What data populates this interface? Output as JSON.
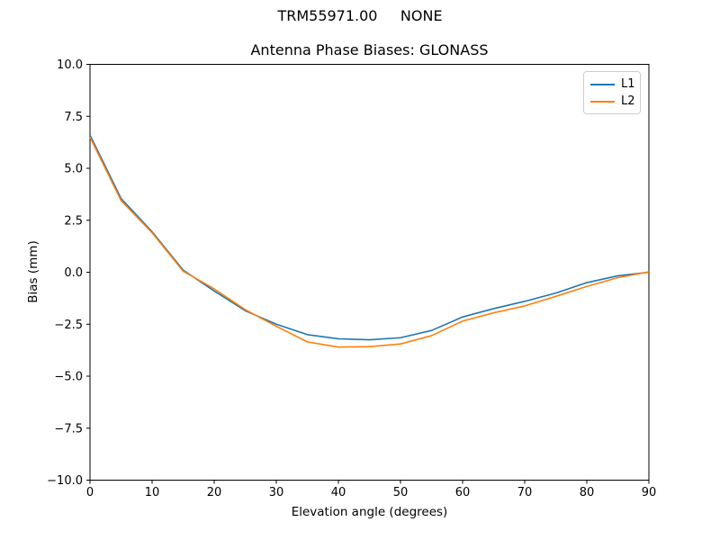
{
  "chart_data": {
    "type": "line",
    "suptitle": "TRM55971.00     NONE",
    "title": "Antenna Phase Biases: GLONASS",
    "xlabel": "Elevation angle (degrees)",
    "ylabel": "Bias (mm)",
    "xlim": [
      0,
      90
    ],
    "ylim": [
      -10,
      10
    ],
    "x_ticks": [
      0,
      10,
      20,
      30,
      40,
      50,
      60,
      70,
      80,
      90
    ],
    "x_tick_labels": [
      "0",
      "10",
      "20",
      "30",
      "40",
      "50",
      "60",
      "70",
      "80",
      "90"
    ],
    "y_ticks": [
      -10,
      -7.5,
      -5,
      -2.5,
      0,
      2.5,
      5,
      7.5,
      10
    ],
    "y_tick_labels": [
      "−10.0",
      "−7.5",
      "−5.0",
      "−2.5",
      "0.0",
      "2.5",
      "5.0",
      "7.5",
      "10.0"
    ],
    "grid": false,
    "legend_position": "upper right",
    "x": [
      0,
      5,
      10,
      15,
      20,
      25,
      30,
      35,
      40,
      45,
      50,
      55,
      60,
      65,
      70,
      75,
      80,
      85,
      90
    ],
    "series": [
      {
        "name": "L1",
        "color": "#1f77b4",
        "values": [
          6.6,
          3.55,
          1.95,
          0.1,
          -0.9,
          -1.85,
          -2.5,
          -3.0,
          -3.2,
          -3.25,
          -3.15,
          -2.8,
          -2.15,
          -1.75,
          -1.4,
          -1.0,
          -0.5,
          -0.17,
          0.0
        ]
      },
      {
        "name": "L2",
        "color": "#ff7f0e",
        "values": [
          6.5,
          3.45,
          1.9,
          0.05,
          -0.8,
          -1.8,
          -2.6,
          -3.35,
          -3.6,
          -3.58,
          -3.45,
          -3.05,
          -2.35,
          -1.95,
          -1.62,
          -1.16,
          -0.68,
          -0.26,
          0.02
        ]
      }
    ]
  }
}
